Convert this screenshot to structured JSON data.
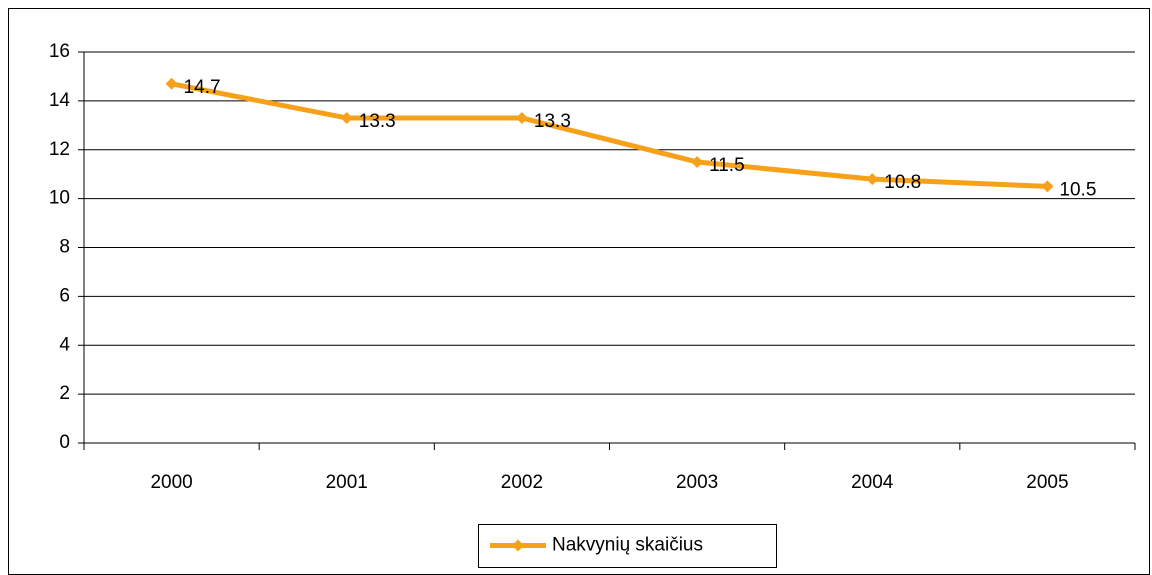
{
  "chart_data": {
    "type": "line",
    "categories": [
      "2000",
      "2001",
      "2002",
      "2003",
      "2004",
      "2005"
    ],
    "series": [
      {
        "name": "Nakvynių skaičius",
        "color": "#f7a11a",
        "values": [
          14.7,
          13.3,
          13.3,
          11.5,
          10.8,
          10.5
        ]
      }
    ],
    "ylim": [
      0,
      16
    ],
    "yticks": [
      0,
      2,
      4,
      6,
      8,
      10,
      12,
      14,
      16
    ],
    "grid": true,
    "legend": "bottom"
  }
}
